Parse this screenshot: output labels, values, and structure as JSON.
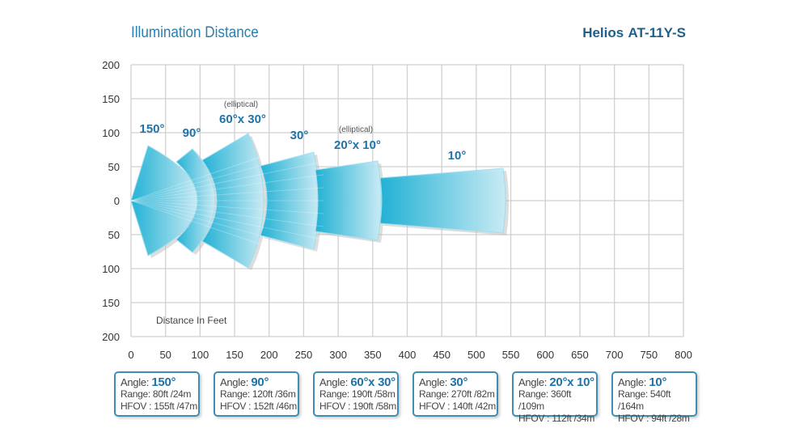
{
  "header": {
    "title": "Illumination Distance",
    "brand": "Helios",
    "model": "AT-11Y-S"
  },
  "chart_data": {
    "type": "beam-diagram",
    "xlabel": "Distance In Feet",
    "xlim": [
      0,
      800
    ],
    "ylim": [
      -200,
      200
    ],
    "grid": true,
    "x_ticks": [
      "0",
      "50",
      "100",
      "150",
      "200",
      "250",
      "300",
      "350",
      "400",
      "450",
      "500",
      "550",
      "600",
      "650",
      "700",
      "750",
      "800"
    ],
    "y_ticks": [
      "200",
      "150",
      "100",
      "50",
      "0",
      "50",
      "100",
      "150",
      "200"
    ],
    "beams": [
      {
        "label": "150°",
        "note": "",
        "range_ft": 80,
        "hfov_ft": 155
      },
      {
        "label": "90°",
        "note": "",
        "range_ft": 120,
        "hfov_ft": 152
      },
      {
        "label": "60°x 30°",
        "note": "(elliptical)",
        "range_ft": 190,
        "hfov_ft": 190
      },
      {
        "label": "30°",
        "note": "",
        "range_ft": 270,
        "hfov_ft": 140
      },
      {
        "label": "20°x 10°",
        "note": "(elliptical)",
        "range_ft": 360,
        "hfov_ft": 112
      },
      {
        "label": "10°",
        "note": "",
        "range_ft": 540,
        "hfov_ft": 94
      }
    ],
    "colors": {
      "beam_dark": "#12aed4",
      "beam_light": "#c8ecf6",
      "label": "#1f73a8"
    }
  },
  "info_boxes": [
    {
      "angle_label": "Angle:",
      "angle": "150°",
      "range": "Range: 80ft /24m",
      "hfov": "HFOV : 155ft /47m"
    },
    {
      "angle_label": "Angle:",
      "angle": "90°",
      "range": "Range: 120ft /36m",
      "hfov": "HFOV : 152ft /46m"
    },
    {
      "angle_label": "Angle:",
      "angle": "60°x 30°",
      "range": "Range: 190ft /58m",
      "hfov": "HFOV : 190ft /58m"
    },
    {
      "angle_label": "Angle:",
      "angle": "30°",
      "range": "Range: 270ft /82m",
      "hfov": "HFOV : 140ft /42m"
    },
    {
      "angle_label": "Angle:",
      "angle": "20°x 10°",
      "range": "Range: 360ft /109m",
      "hfov": "HFOV : 112ft /34m"
    },
    {
      "angle_label": "Angle:",
      "angle": "10°",
      "range": "Range: 540ft /164m",
      "hfov": "HFOV : 94ft /28m"
    }
  ]
}
